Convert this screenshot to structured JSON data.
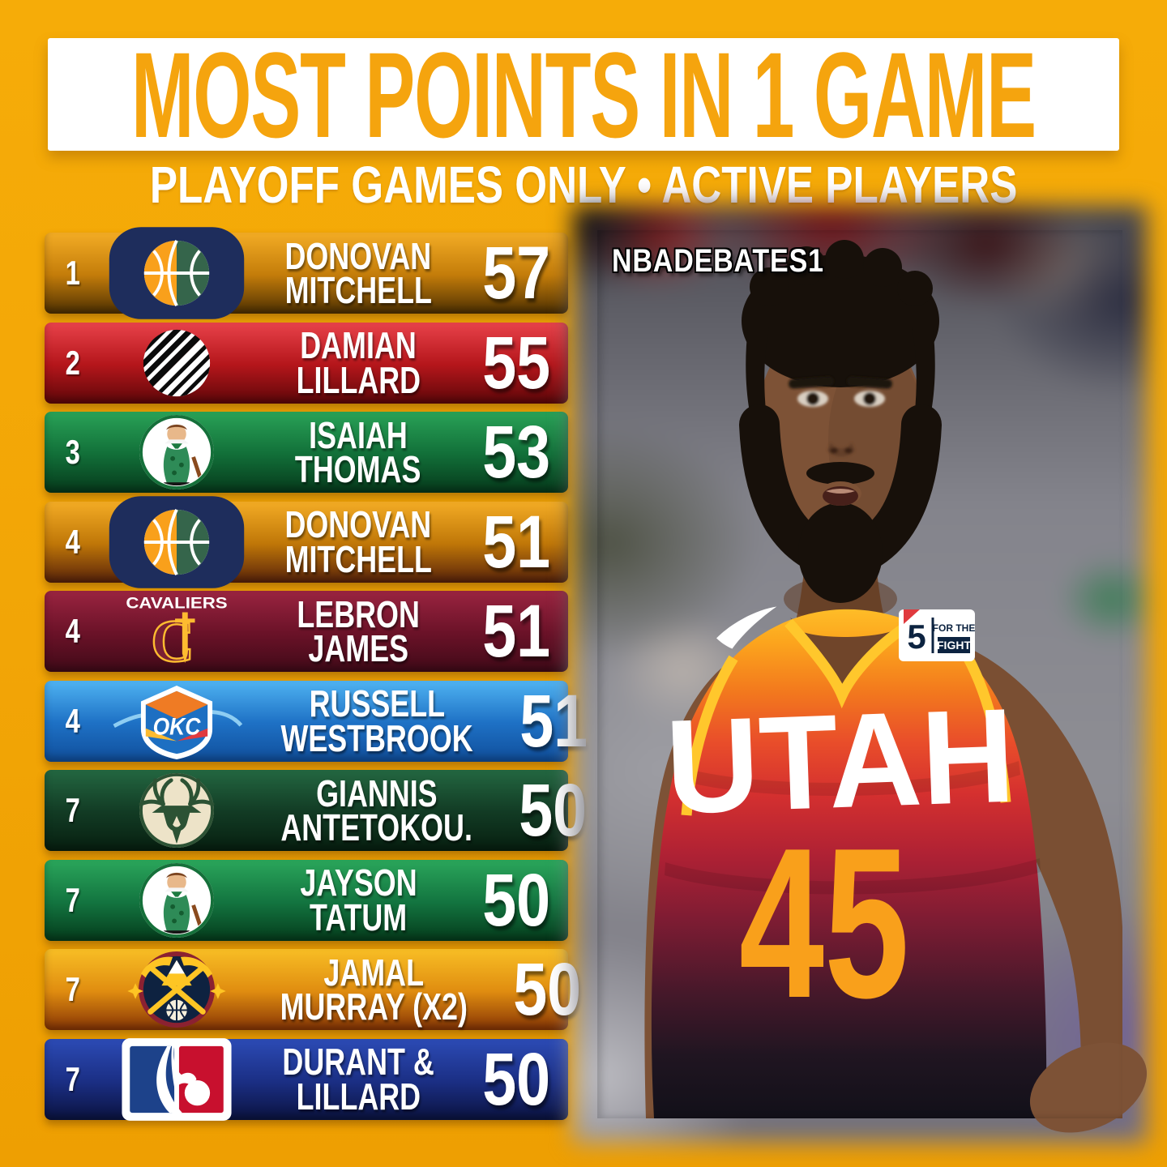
{
  "header": {
    "title": "MOST POINTS IN 1 GAME",
    "subtitle": "PLAYOFF GAMES ONLY • ACTIVE PLAYERS"
  },
  "watermark": "NBADEBATES1",
  "photo": {
    "jersey_wordmark": "UTAH",
    "jersey_number": "45",
    "patch_number": "5",
    "patch_line1": "FOR THE",
    "patch_line2": "FIGHT"
  },
  "logos": {
    "cavaliers_label": "CAVALIERS",
    "thunder_label": "OKC"
  },
  "colors": {
    "background_gold": "#F2A506",
    "banner_bg": "#FFFFFF",
    "title_text": "#F5A40E",
    "row_text": "#FFFFFF",
    "jersey_yellow": "#FFC72C",
    "jersey_black": "#121019",
    "number_gold": "#F9A01B"
  },
  "chart_data": {
    "type": "table",
    "title": "MOST POINTS IN 1 GAME",
    "subtitle": "PLAYOFF GAMES ONLY • ACTIVE PLAYERS",
    "columns": [
      "rank",
      "team",
      "player",
      "points"
    ],
    "rows": [
      {
        "rank": "1",
        "team_logo": "utah-jazz",
        "player": "DONOVAN MITCHELL",
        "player_line1": "DONOVAN",
        "player_line2": "MITCHELL",
        "points": "57",
        "colors": {
          "top": "#F3AC25",
          "mid": "#C47D0A",
          "bottom": "#4E3002"
        }
      },
      {
        "rank": "2",
        "team_logo": "trail-blazers",
        "player": "DAMIAN LILLARD",
        "player_line1": "DAMIAN",
        "player_line2": "LILLARD",
        "points": "55",
        "colors": {
          "top": "#E8424A",
          "mid": "#B5161B",
          "bottom": "#5E0709"
        }
      },
      {
        "rank": "3",
        "team_logo": "celtics",
        "player": "ISAIAH THOMAS",
        "player_line1": "ISAIAH",
        "player_line2": "THOMAS",
        "points": "53",
        "colors": {
          "top": "#29A257",
          "mid": "#127039",
          "bottom": "#06391B"
        }
      },
      {
        "rank": "4",
        "team_logo": "utah-jazz",
        "player": "DONOVAN MITCHELL",
        "player_line1": "DONOVAN",
        "player_line2": "MITCHELL",
        "points": "51",
        "colors": {
          "top": "#F3AC25",
          "mid": "#C07708",
          "bottom": "#57220A"
        }
      },
      {
        "rank": "4",
        "team_logo": "cavaliers",
        "player": "LEBRON JAMES",
        "player_line1": "LEBRON",
        "player_line2": "JAMES",
        "points": "51",
        "colors": {
          "top": "#9A2440",
          "mid": "#6B1228",
          "bottom": "#400A18"
        }
      },
      {
        "rank": "4",
        "team_logo": "thunder",
        "player": "RUSSELL WESTBROOK",
        "player_line1": "RUSSELL",
        "player_line2": "WESTBROOK",
        "points": "51",
        "colors": {
          "top": "#4FB3F2",
          "mid": "#1E71C5",
          "bottom": "#104E9B"
        }
      },
      {
        "rank": "7",
        "team_logo": "bucks",
        "player": "GIANNIS ANTETOKOU.",
        "player_line1": "GIANNIS",
        "player_line2": "ANTETOKOU.",
        "points": "50",
        "colors": {
          "top": "#236741",
          "mid": "#123B24",
          "bottom": "#071F10"
        }
      },
      {
        "rank": "7",
        "team_logo": "celtics",
        "player": "JAYSON TATUM",
        "player_line1": "JAYSON",
        "player_line2": "TATUM",
        "points": "50",
        "colors": {
          "top": "#2AA65B",
          "mid": "#137540",
          "bottom": "#053C1C"
        }
      },
      {
        "rank": "7",
        "team_logo": "nuggets",
        "player": "JAMAL MURRAY (X2)",
        "player_line1": "JAMAL",
        "player_line2": "MURRAY (X2)",
        "points": "50",
        "colors": {
          "top": "#F8BE25",
          "mid": "#E08D10",
          "bottom": "#873505"
        }
      },
      {
        "rank": "7",
        "team_logo": "nba",
        "player": "DURANT & LILLARD",
        "player_line1": "DURANT &",
        "player_line2": "LILLARD",
        "points": "50",
        "colors": {
          "top": "#2C4BB5",
          "mid": "#1B2F85",
          "bottom": "#0B1340"
        }
      }
    ]
  }
}
